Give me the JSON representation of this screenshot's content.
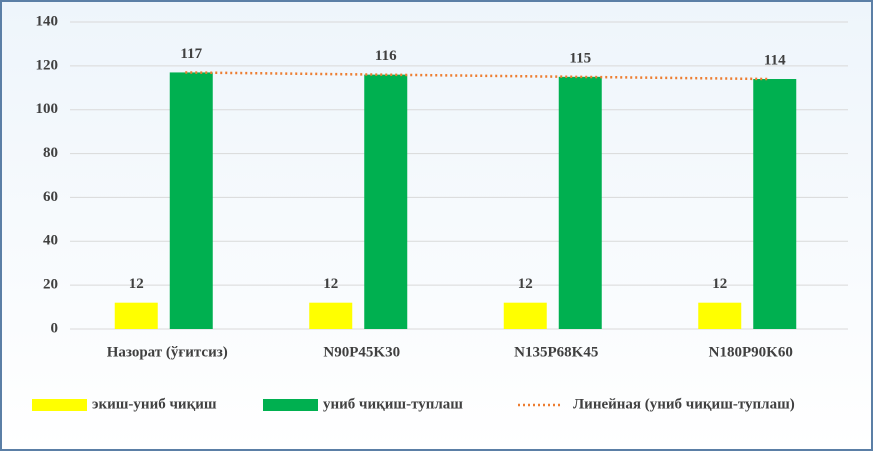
{
  "chart_data": {
    "type": "bar",
    "categories": [
      "Назорат (ўғитсиз)",
      "N90P45K30",
      "N135P68K45",
      "N180P90K60"
    ],
    "series": [
      {
        "name": "экиш-униб чиқиш",
        "color": "#ffff00",
        "values": [
          12,
          12,
          12,
          12
        ]
      },
      {
        "name": "униб чиқиш-туплаш",
        "color": "#00b050",
        "values": [
          117,
          116,
          115,
          114
        ]
      },
      {
        "name": "Линейная (униб чиқиш-туплаш)",
        "color": "#ed7d31",
        "type": "trendline",
        "values": [
          117,
          116,
          115,
          114
        ]
      }
    ],
    "ylim": [
      0,
      140
    ],
    "yticks": [
      0,
      20,
      40,
      60,
      80,
      100,
      120,
      140
    ],
    "grid": true
  }
}
